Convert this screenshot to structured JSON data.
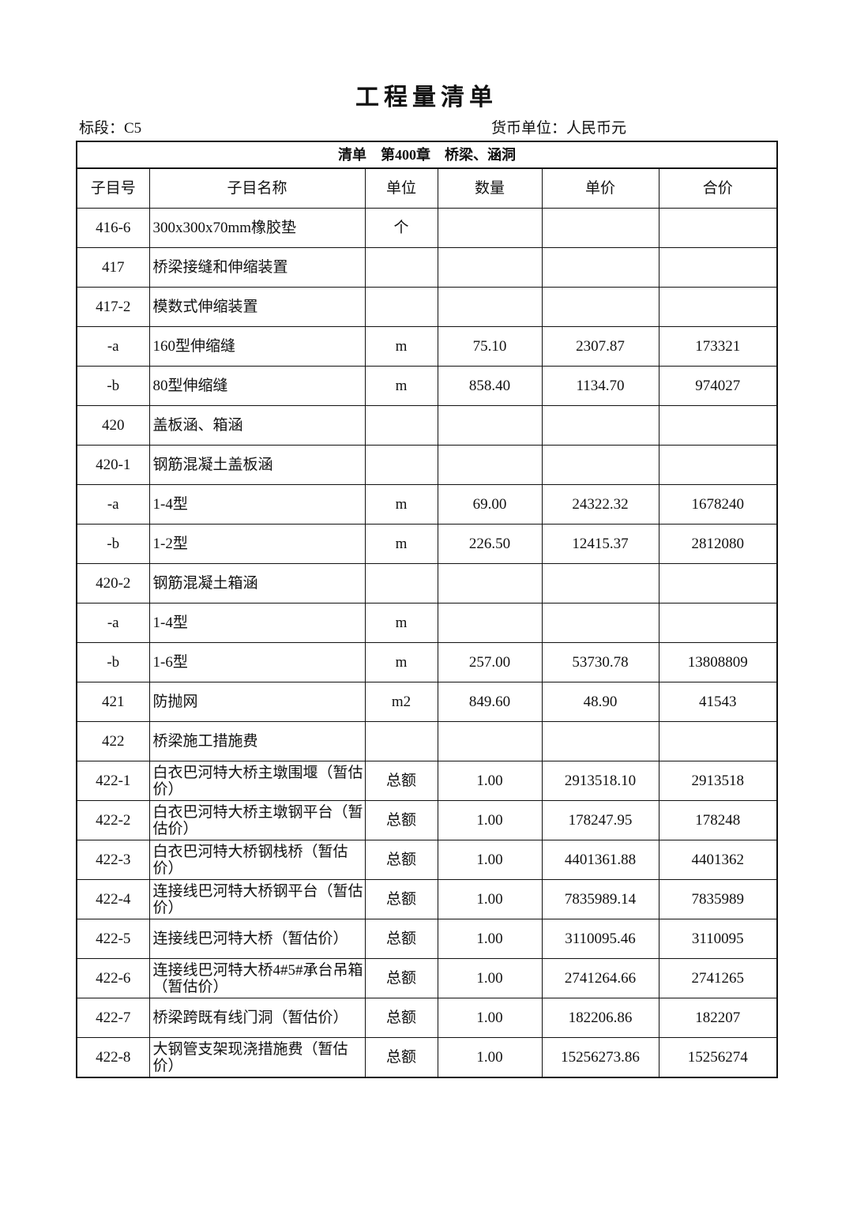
{
  "title": "工程量清单",
  "section_label": "标段：C5",
  "currency_label": "货币单位：人民币元",
  "chapter_title": "清单　第400章　桥梁、涵洞",
  "columns": [
    "子目号",
    "子目名称",
    "单位",
    "数量",
    "单价",
    "合价"
  ],
  "rows": [
    [
      "416-6",
      "300x300x70mm橡胶垫",
      "个",
      "",
      "",
      ""
    ],
    [
      "417",
      "桥梁接缝和伸缩装置",
      "",
      "",
      "",
      ""
    ],
    [
      "417-2",
      "模数式伸缩装置",
      "",
      "",
      "",
      ""
    ],
    [
      "-a",
      "160型伸缩缝",
      "m",
      "75.10",
      "2307.87",
      "173321"
    ],
    [
      "-b",
      "80型伸缩缝",
      "m",
      "858.40",
      "1134.70",
      "974027"
    ],
    [
      "420",
      "盖板涵、箱涵",
      "",
      "",
      "",
      ""
    ],
    [
      "420-1",
      "钢筋混凝土盖板涵",
      "",
      "",
      "",
      ""
    ],
    [
      "-a",
      "1-4型",
      "m",
      "69.00",
      "24322.32",
      "1678240"
    ],
    [
      "-b",
      "1-2型",
      "m",
      "226.50",
      "12415.37",
      "2812080"
    ],
    [
      "420-2",
      "钢筋混凝土箱涵",
      "",
      "",
      "",
      ""
    ],
    [
      "-a",
      "1-4型",
      "m",
      "",
      "",
      ""
    ],
    [
      "-b",
      "1-6型",
      "m",
      "257.00",
      "53730.78",
      "13808809"
    ],
    [
      "421",
      "防抛网",
      "m2",
      "849.60",
      "48.90",
      "41543"
    ],
    [
      "422",
      "桥梁施工措施费",
      "",
      "",
      "",
      ""
    ],
    [
      "422-1",
      "白衣巴河特大桥主墩围堰（暂估价）",
      "总额",
      "1.00",
      "2913518.10",
      "2913518"
    ],
    [
      "422-2",
      "白衣巴河特大桥主墩钢平台（暂估价）",
      "总额",
      "1.00",
      "178247.95",
      "178248"
    ],
    [
      "422-3",
      "白衣巴河特大桥钢栈桥（暂估价）",
      "总额",
      "1.00",
      "4401361.88",
      "4401362"
    ],
    [
      "422-4",
      "连接线巴河特大桥钢平台（暂估价）",
      "总额",
      "1.00",
      "7835989.14",
      "7835989"
    ],
    [
      "422-5",
      "连接线巴河特大桥（暂估价）",
      "总额",
      "1.00",
      "3110095.46",
      "3110095"
    ],
    [
      "422-6",
      "连接线巴河特大桥4#5#承台吊箱（暂估价）",
      "总额",
      "1.00",
      "2741264.66",
      "2741265"
    ],
    [
      "422-7",
      "桥梁跨既有线门洞（暂估价）",
      "总额",
      "1.00",
      "182206.86",
      "182207"
    ],
    [
      "422-8",
      "大钢管支架现浇措施费（暂估价）",
      "总额",
      "1.00",
      "15256273.86",
      "15256274"
    ]
  ]
}
